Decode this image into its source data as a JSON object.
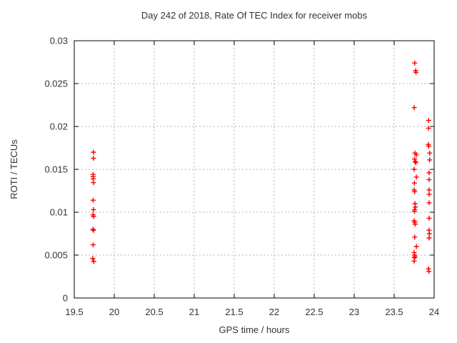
{
  "chart_data": {
    "type": "scatter",
    "title": "Day 242 of 2018, Rate Of TEC Index for receiver mobs",
    "xlabel": "GPS time / hours",
    "ylabel": "ROTI / TECUs",
    "xlim": [
      19.5,
      24
    ],
    "ylim": [
      0,
      0.03
    ],
    "xticks": [
      19.5,
      20,
      20.5,
      21,
      21.5,
      22,
      22.5,
      23,
      23.5,
      24
    ],
    "xtick_labels": [
      "19.5",
      "20",
      "20.5",
      "21",
      "21.5",
      "22",
      "22.5",
      "23",
      "23.5",
      "24"
    ],
    "yticks": [
      0,
      0.005,
      0.01,
      0.015,
      0.02,
      0.025,
      0.03
    ],
    "ytick_labels": [
      "0",
      "0.005",
      "0.01",
      "0.015",
      "0.02",
      "0.025",
      "0.03"
    ],
    "grid": true,
    "legend_position": "none",
    "marker": "plus",
    "colors": {
      "marker": "#ff0000",
      "axis": "#000000",
      "grid": "#b3b3b3",
      "text": "#333333",
      "background": "#ffffff"
    },
    "series": [
      {
        "name": "ROTI",
        "points": [
          [
            19.74,
            0.017
          ],
          [
            19.74,
            0.0163
          ],
          [
            19.736,
            0.0144
          ],
          [
            19.736,
            0.01415
          ],
          [
            19.736,
            0.0139
          ],
          [
            19.74,
            0.01345
          ],
          [
            19.736,
            0.0114
          ],
          [
            19.74,
            0.0103
          ],
          [
            19.734,
            0.0097
          ],
          [
            19.742,
            0.0095
          ],
          [
            19.734,
            0.008
          ],
          [
            19.741,
            0.0079
          ],
          [
            19.736,
            0.0062
          ],
          [
            19.73,
            0.0046
          ],
          [
            19.744,
            0.00425
          ],
          [
            23.757,
            0.0274
          ],
          [
            23.768,
            0.0265
          ],
          [
            23.773,
            0.0263
          ],
          [
            23.751,
            0.0222
          ],
          [
            23.76,
            0.0169
          ],
          [
            23.778,
            0.0167
          ],
          [
            23.755,
            0.0162
          ],
          [
            23.761,
            0.0159
          ],
          [
            23.772,
            0.0158
          ],
          [
            23.75,
            0.015
          ],
          [
            23.778,
            0.0141
          ],
          [
            23.753,
            0.0134
          ],
          [
            23.75,
            0.0126
          ],
          [
            23.757,
            0.0124
          ],
          [
            23.76,
            0.011
          ],
          [
            23.765,
            0.0106
          ],
          [
            23.757,
            0.0103
          ],
          [
            23.754,
            0.0101
          ],
          [
            23.75,
            0.009
          ],
          [
            23.758,
            0.0088
          ],
          [
            23.762,
            0.0086
          ],
          [
            23.757,
            0.0071
          ],
          [
            23.778,
            0.006
          ],
          [
            23.75,
            0.0053
          ],
          [
            23.756,
            0.005
          ],
          [
            23.761,
            0.0048
          ],
          [
            23.753,
            0.0047
          ],
          [
            23.75,
            0.0043
          ],
          [
            23.93,
            0.0207
          ],
          [
            23.93,
            0.0198
          ],
          [
            23.927,
            0.0179
          ],
          [
            23.932,
            0.0177
          ],
          [
            23.944,
            0.0169
          ],
          [
            23.944,
            0.0161
          ],
          [
            23.937,
            0.0146
          ],
          [
            23.937,
            0.0138
          ],
          [
            23.937,
            0.0126
          ],
          [
            23.937,
            0.0121
          ],
          [
            23.937,
            0.0111
          ],
          [
            23.937,
            0.0093
          ],
          [
            23.936,
            0.0079
          ],
          [
            23.94,
            0.0075
          ],
          [
            23.937,
            0.007
          ],
          [
            23.929,
            0.0034
          ],
          [
            23.934,
            0.0031
          ]
        ]
      }
    ]
  }
}
